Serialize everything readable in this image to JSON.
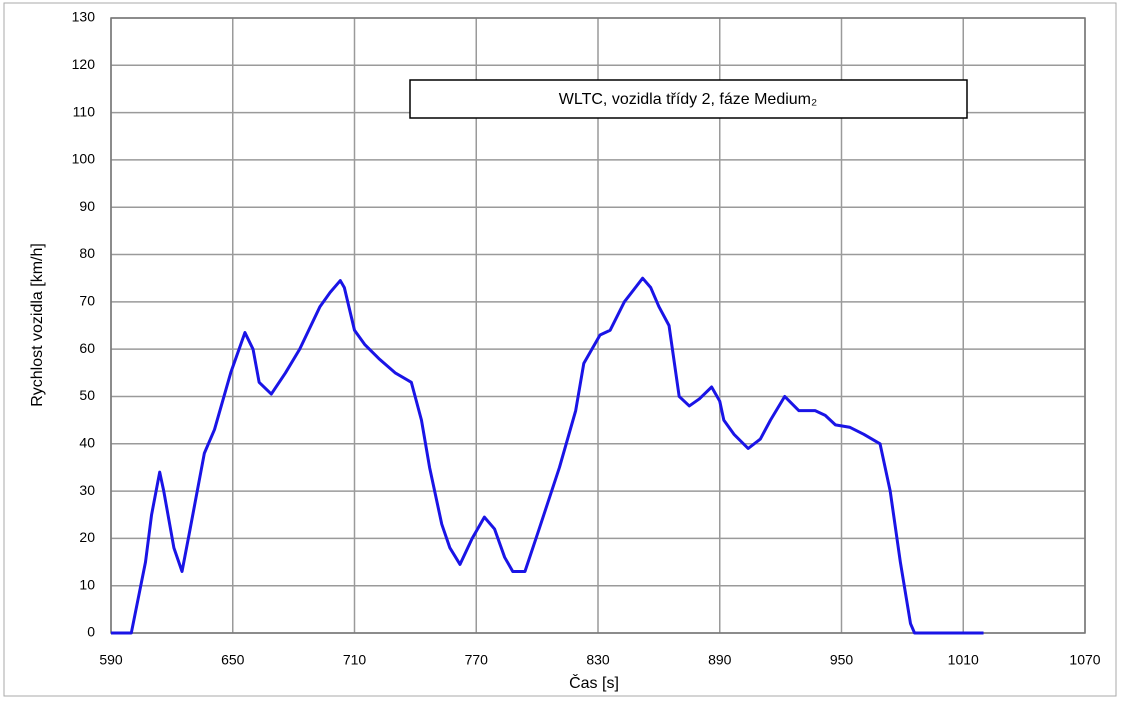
{
  "chart_data": {
    "type": "line",
    "title": "WLTC, vozidla třídy 2, fáze Medium₂",
    "x_label": "Čas [s]",
    "y_label": "Rychlost vozidla [km/h]",
    "xlim": [
      590,
      1070
    ],
    "xticks": [
      590,
      650,
      710,
      770,
      830,
      890,
      950,
      1010,
      1070
    ],
    "ylim": [
      0,
      130
    ],
    "yticks": [
      0,
      10,
      20,
      30,
      40,
      50,
      60,
      70,
      80,
      90,
      100,
      110,
      120,
      130
    ],
    "grid": true,
    "series": [
      {
        "name": "WLTC",
        "color": "#1a14e6",
        "x": [
          590,
          600,
          607,
          610,
          614,
          616,
          621,
          625,
          629,
          636,
          641,
          649,
          656,
          660,
          663,
          669,
          676,
          683,
          693,
          698,
          703,
          705,
          710,
          715,
          722,
          730,
          738,
          743,
          747,
          753,
          757,
          762,
          768,
          774,
          779,
          784,
          788,
          794,
          801,
          811,
          819,
          823,
          831,
          836,
          843,
          852,
          856,
          860,
          865,
          870,
          875,
          880,
          886,
          890,
          892,
          897,
          904,
          910,
          915,
          922,
          929,
          937,
          942,
          947,
          954,
          961,
          969,
          974,
          979,
          984,
          986,
          1020
        ],
        "values": [
          0,
          0,
          15,
          25,
          34,
          30,
          18,
          13,
          22,
          38,
          43,
          55,
          63.5,
          60,
          53,
          50.5,
          55,
          60,
          69,
          72,
          74.5,
          73,
          64,
          61,
          58,
          55,
          53,
          45,
          35,
          23,
          18,
          14.5,
          20,
          24.5,
          22,
          16,
          13,
          13,
          22,
          35,
          47,
          57,
          63,
          64,
          70,
          75,
          73,
          69,
          65,
          50,
          48,
          49.5,
          52,
          49,
          45,
          42,
          39,
          41,
          45,
          50,
          47,
          47,
          46,
          44,
          43.5,
          42,
          40,
          30,
          15,
          2,
          0,
          0
        ]
      }
    ]
  }
}
